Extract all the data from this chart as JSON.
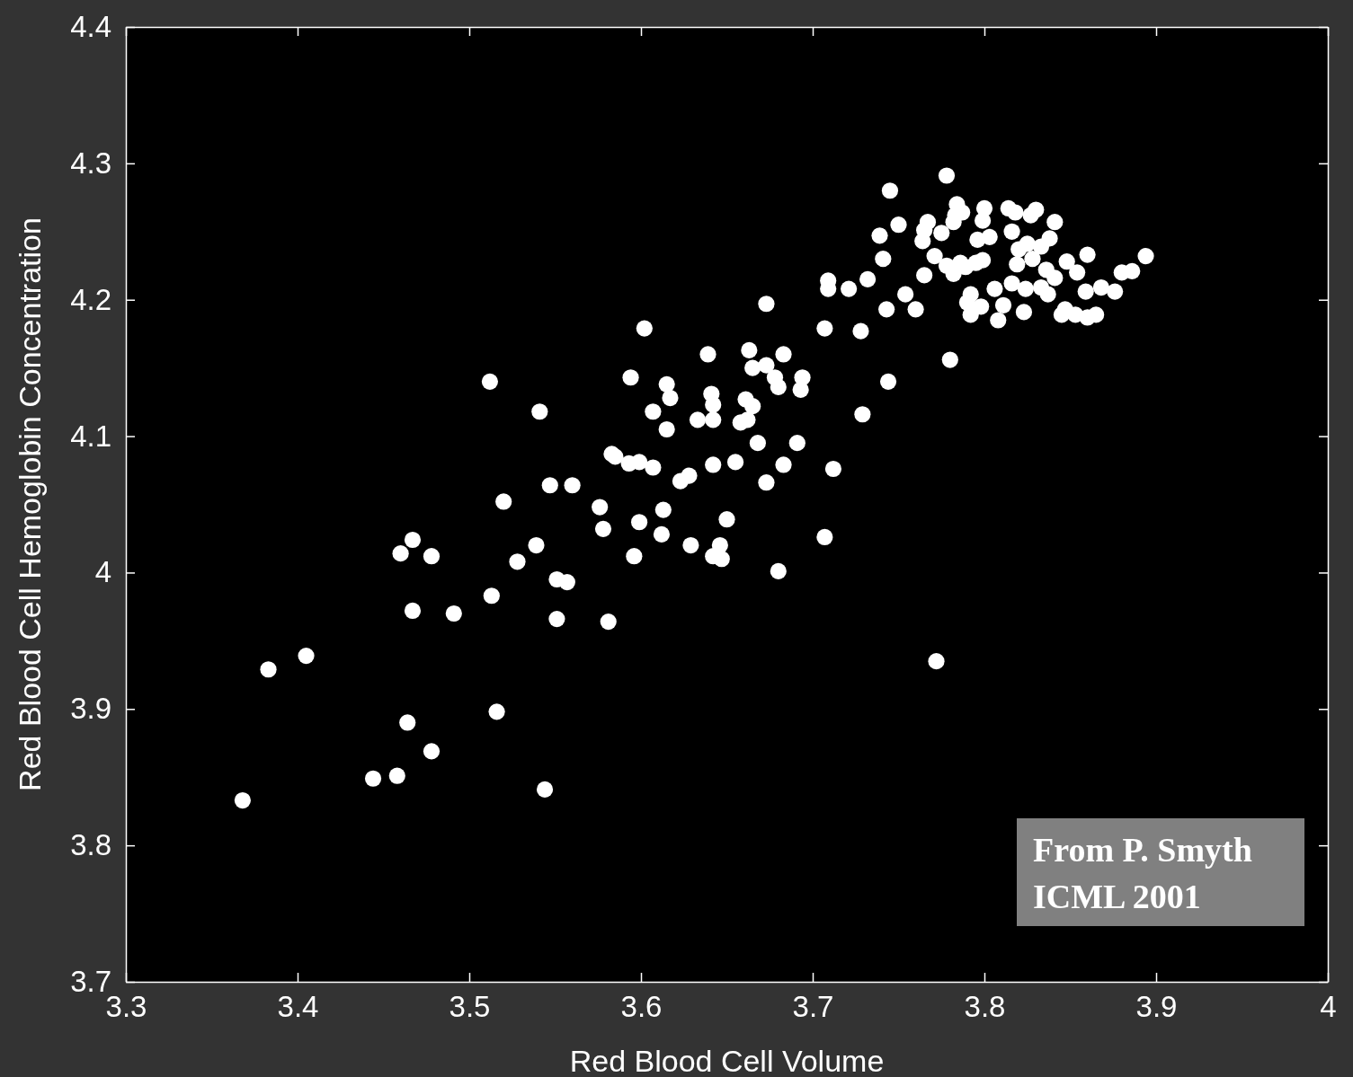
{
  "chart_data": {
    "type": "scatter",
    "xlabel": "Red Blood Cell Volume",
    "ylabel": "Red Blood Cell Hemoglobin Concentration",
    "xlim": [
      3.3,
      4
    ],
    "ylim": [
      3.7,
      4.4
    ],
    "xticks": [
      3.3,
      3.4,
      3.5,
      3.6,
      3.7,
      3.8,
      3.9,
      4
    ],
    "yticks": [
      3.7,
      3.8,
      3.9,
      4,
      4.1,
      4.2,
      4.3,
      4.4
    ],
    "grid": false,
    "marker": "circle",
    "annotations": [
      "From P. Smyth\nICML 2001"
    ],
    "series": [
      {
        "color": "#ffffff",
        "x": [
          3.368,
          3.383,
          3.405,
          3.444,
          3.458,
          3.464,
          3.478,
          3.46,
          3.467,
          3.467,
          3.478,
          3.491,
          3.512,
          3.513,
          3.516,
          3.52,
          3.528,
          3.539,
          3.541,
          3.544,
          3.547,
          3.551,
          3.551,
          3.557,
          3.56,
          3.576,
          3.578,
          3.581,
          3.583,
          3.585,
          3.593,
          3.594,
          3.596,
          3.599,
          3.599,
          3.602,
          3.607,
          3.607,
          3.612,
          3.613,
          3.615,
          3.615,
          3.617,
          3.623,
          3.628,
          3.629,
          3.633,
          3.639,
          3.641,
          3.642,
          3.642,
          3.642,
          3.642,
          3.646,
          3.647,
          3.65,
          3.655,
          3.658,
          3.662,
          3.661,
          3.665,
          3.663,
          3.665,
          3.668,
          3.673,
          3.673,
          3.673,
          3.678,
          3.68,
          3.68,
          3.683,
          3.683,
          3.691,
          3.693,
          3.694,
          3.707,
          3.707,
          3.709,
          3.709,
          3.712,
          3.721,
          3.728,
          3.729,
          3.732,
          3.739,
          3.741,
          3.743,
          3.744,
          3.745,
          3.75,
          3.754,
          3.76,
          3.764,
          3.765,
          3.767,
          3.765,
          3.772,
          3.771,
          3.775,
          3.778,
          3.78,
          3.778,
          3.782,
          3.784,
          3.783,
          3.787,
          3.782,
          3.786,
          3.789,
          3.792,
          3.79,
          3.792,
          3.795,
          3.796,
          3.799,
          3.8,
          3.799,
          3.798,
          3.803,
          3.806,
          3.808,
          3.811,
          3.814,
          3.818,
          3.816,
          3.816,
          3.82,
          3.819,
          3.823,
          3.824,
          3.825,
          3.827,
          3.83,
          3.828,
          3.833,
          3.836,
          3.833,
          3.838,
          3.841,
          3.841,
          3.837,
          3.845,
          3.847,
          3.848,
          3.854,
          3.86,
          3.859,
          3.853,
          3.86,
          3.865,
          3.868,
          3.876,
          3.88,
          3.886,
          3.894
        ],
        "values": [
          3.833,
          3.929,
          3.939,
          3.849,
          3.851,
          3.89,
          3.869,
          4.014,
          4.024,
          3.972,
          4.012,
          3.97,
          4.14,
          3.983,
          3.898,
          4.052,
          4.008,
          4.02,
          4.118,
          3.841,
          4.064,
          3.995,
          3.966,
          3.993,
          4.064,
          4.048,
          4.032,
          3.964,
          4.087,
          4.085,
          4.08,
          4.143,
          4.012,
          4.081,
          4.037,
          4.179,
          4.077,
          4.118,
          4.028,
          4.046,
          4.138,
          4.105,
          4.128,
          4.067,
          4.071,
          4.02,
          4.112,
          4.16,
          4.131,
          4.123,
          4.112,
          4.079,
          4.012,
          4.02,
          4.01,
          4.039,
          4.081,
          4.11,
          4.112,
          4.127,
          4.122,
          4.163,
          4.15,
          4.095,
          4.152,
          4.066,
          4.197,
          4.143,
          4.136,
          4.001,
          4.16,
          4.079,
          4.095,
          4.134,
          4.143,
          4.026,
          4.179,
          4.214,
          4.208,
          4.076,
          4.208,
          4.177,
          4.116,
          4.215,
          4.247,
          4.23,
          4.193,
          4.14,
          4.28,
          4.255,
          4.204,
          4.193,
          4.243,
          4.251,
          4.257,
          4.218,
          3.935,
          4.232,
          4.249,
          4.291,
          4.156,
          4.225,
          4.257,
          4.27,
          4.262,
          4.264,
          4.219,
          4.227,
          4.224,
          4.204,
          4.198,
          4.189,
          4.227,
          4.244,
          4.229,
          4.267,
          4.258,
          4.195,
          4.246,
          4.208,
          4.185,
          4.196,
          4.267,
          4.264,
          4.25,
          4.212,
          4.237,
          4.226,
          4.191,
          4.208,
          4.241,
          4.262,
          4.266,
          4.23,
          4.239,
          4.222,
          4.209,
          4.245,
          4.257,
          4.216,
          4.204,
          4.189,
          4.193,
          4.228,
          4.22,
          4.233,
          4.206,
          4.189,
          4.187,
          4.189,
          4.209,
          4.206,
          4.22,
          4.221,
          4.232
        ]
      }
    ]
  }
}
